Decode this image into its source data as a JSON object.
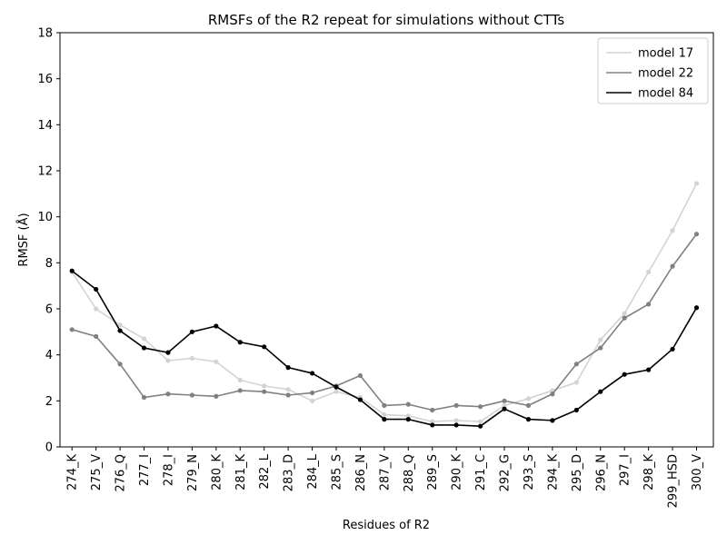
{
  "chart_data": {
    "type": "line",
    "title": "RMSFs of the R2 repeat for simulations without CTTs",
    "xlabel": "Residues of R2",
    "ylabel": "RMSF (Å)",
    "ylim": [
      0,
      18
    ],
    "yticks": [
      0,
      2,
      4,
      6,
      8,
      10,
      12,
      14,
      16,
      18
    ],
    "grid": false,
    "legend_position": "top-right",
    "categories": [
      "274_K",
      "275_V",
      "276_Q",
      "277_I",
      "278_I",
      "279_N",
      "280_K",
      "281_K",
      "282_L",
      "283_D",
      "284_L",
      "285_S",
      "286_N",
      "287_V",
      "288_Q",
      "289_S",
      "290_K",
      "291_C",
      "292_G",
      "293_S",
      "294_K",
      "295_D",
      "296_N",
      "297_I",
      "298_K",
      "299_HSD",
      "300_V"
    ],
    "highlighted_categories": [
      "285_S",
      "289_S",
      "293_S"
    ],
    "highlight_color": "#008000",
    "series": [
      {
        "name": "model 17",
        "color": "#d3d3d3",
        "values": [
          7.6,
          6.0,
          5.3,
          4.7,
          3.75,
          3.85,
          3.7,
          2.9,
          2.65,
          2.5,
          2.0,
          2.4,
          2.15,
          1.4,
          1.35,
          1.1,
          1.15,
          1.1,
          1.8,
          2.1,
          2.45,
          2.8,
          4.65,
          5.8,
          7.6,
          9.4,
          11.45
        ]
      },
      {
        "name": "model 22",
        "color": "#808080",
        "values": [
          5.1,
          4.8,
          3.6,
          2.15,
          2.3,
          2.25,
          2.2,
          2.45,
          2.4,
          2.25,
          2.35,
          2.65,
          3.1,
          1.8,
          1.85,
          1.6,
          1.8,
          1.75,
          2.0,
          1.8,
          2.3,
          3.6,
          4.3,
          5.6,
          6.2,
          7.85,
          9.25
        ]
      },
      {
        "name": "model 84",
        "color": "#000000",
        "values": [
          7.65,
          6.85,
          5.05,
          4.3,
          4.1,
          5.0,
          5.25,
          4.55,
          4.35,
          3.45,
          3.2,
          2.6,
          2.05,
          1.2,
          1.2,
          0.95,
          0.95,
          0.9,
          1.65,
          1.2,
          1.15,
          1.6,
          2.4,
          3.15,
          3.35,
          4.25,
          6.05
        ]
      }
    ]
  }
}
